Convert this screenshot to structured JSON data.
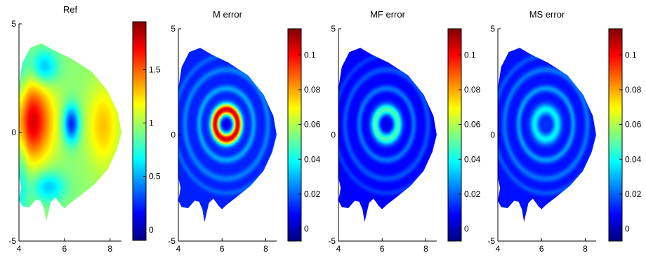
{
  "chart_data": [
    {
      "type": "heatmap",
      "title": "Ref",
      "xlabel": "",
      "ylabel": "",
      "xlim": [
        4,
        8.5
      ],
      "ylim": [
        -5,
        5
      ],
      "xticks": [
        "4",
        "6",
        "8"
      ],
      "yticks": [
        "5",
        "0",
        "-5"
      ],
      "colorbar": {
        "min": -0.1,
        "max": 1.95,
        "ticks": [
          "0",
          "0.5",
          "1",
          "1.5"
        ],
        "tick_values": [
          0,
          0.5,
          1,
          1.5
        ]
      },
      "field": {
        "type": "reference",
        "peak_value": 1.8,
        "peak_R": 4.5,
        "peak_Z": 0.5,
        "hole_value": 0.2,
        "hole_R": 6.3,
        "hole_Z": 0.4
      }
    },
    {
      "type": "heatmap",
      "title": "M error",
      "xlabel": "",
      "ylabel": "",
      "xlim": [
        4,
        8.5
      ],
      "ylim": [
        -5,
        5
      ],
      "xticks": [
        "4",
        "6",
        "8"
      ],
      "yticks": [
        "5",
        "0",
        "-5"
      ],
      "colorbar": {
        "min": -0.007,
        "max": 0.115,
        "ticks": [
          "0",
          "0.02",
          "0.04",
          "0.06",
          "0.08",
          "0.1"
        ],
        "tick_values": [
          0,
          0.02,
          0.04,
          0.06,
          0.08,
          0.1
        ]
      },
      "field": {
        "type": "error",
        "center_R": 6.2,
        "center_Z": 0.5,
        "core_value": 0.005,
        "ring_value": 0.105,
        "outer_ring_value": 0.035,
        "background_value": 0.012
      }
    },
    {
      "type": "heatmap",
      "title": "MF error",
      "xlabel": "",
      "ylabel": "",
      "xlim": [
        4,
        8.5
      ],
      "ylim": [
        -5,
        5
      ],
      "xticks": [
        "4",
        "6",
        "8"
      ],
      "yticks": [
        "5",
        "0",
        "-5"
      ],
      "colorbar": {
        "min": -0.007,
        "max": 0.115,
        "ticks": [
          "0",
          "0.02",
          "0.04",
          "0.06",
          "0.08",
          "0.1"
        ],
        "tick_values": [
          0,
          0.02,
          0.04,
          0.06,
          0.08,
          0.1
        ]
      },
      "field": {
        "type": "error",
        "center_R": 6.2,
        "center_Z": 0.5,
        "core_value": 0.005,
        "ring_value": 0.048,
        "outer_ring_value": 0.028,
        "background_value": 0.008
      }
    },
    {
      "type": "heatmap",
      "title": "MS error",
      "xlabel": "",
      "ylabel": "",
      "xlim": [
        4,
        8.5
      ],
      "ylim": [
        -5,
        5
      ],
      "xticks": [
        "4",
        "6",
        "8"
      ],
      "yticks": [
        "5",
        "0",
        "-5"
      ],
      "colorbar": {
        "min": -0.007,
        "max": 0.115,
        "ticks": [
          "0",
          "0.02",
          "0.04",
          "0.06",
          "0.08",
          "0.1"
        ],
        "tick_values": [
          0,
          0.02,
          0.04,
          0.06,
          0.08,
          0.1
        ]
      },
      "field": {
        "type": "error",
        "center_R": 6.2,
        "center_Z": 0.5,
        "core_value": 0.015,
        "ring_value": 0.038,
        "outer_ring_value": 0.034,
        "background_value": 0.01
      }
    }
  ]
}
